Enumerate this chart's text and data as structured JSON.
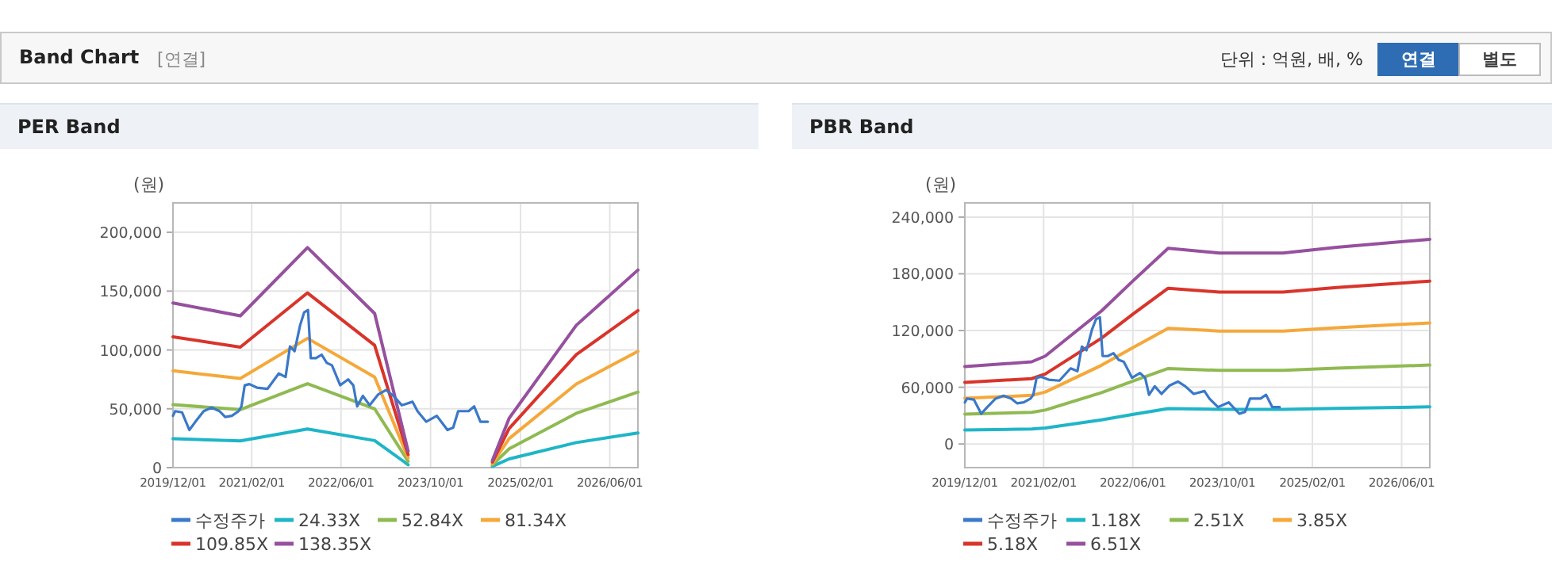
{
  "chart_data": [
    {
      "type": "other",
      "title": "Band Chart",
      "annotations": [
        "[연결]",
        "단위 : 억원, 배, %",
        "연결",
        "별도"
      ]
    },
    {
      "type": "line",
      "title": "PER Band",
      "ylabel": "(원)",
      "xlim": [
        "2019-12-01",
        "2026-11-01"
      ],
      "ylim": [
        0,
        225000
      ],
      "xticks": [
        {
          "value": "2019-12-01",
          "label": "2019/12/01"
        },
        {
          "value": "2021-02-01",
          "label": "2021/02/01"
        },
        {
          "value": "2022-06-01",
          "label": "2022/06/01"
        },
        {
          "value": "2023-10-01",
          "label": "2023/10/01"
        },
        {
          "value": "2025-02-01",
          "label": "2025/02/01"
        },
        {
          "value": "2026-06-01",
          "label": "2026/06/01"
        }
      ],
      "yticks": [
        {
          "value": 0,
          "label": "0"
        },
        {
          "value": 50000,
          "label": "50,000"
        },
        {
          "value": 100000,
          "label": "100,000"
        },
        {
          "value": 150000,
          "label": "150,000"
        },
        {
          "value": 200000,
          "label": "200,000"
        }
      ],
      "grid": true,
      "legend": "bottom",
      "series": [
        {
          "name": "수정주가",
          "color": "#3a78c9",
          "x": [
            "2019-12-01",
            "2019-12-13",
            "2020-01-19",
            "2020-02-28",
            "2020-04-01",
            "2020-05-16",
            "2020-06-28",
            "2020-08-10",
            "2020-09-10",
            "2020-10-16",
            "2020-11-22",
            "2020-12-07",
            "2020-12-25",
            "2021-01-19",
            "2021-03-01",
            "2021-04-28",
            "2021-06-28",
            "2021-08-04",
            "2021-08-28",
            "2021-09-22",
            "2021-10-22",
            "2021-11-13",
            "2021-12-04",
            "2021-12-19",
            "2022-01-16",
            "2022-02-16",
            "2022-03-16",
            "2022-04-13",
            "2022-05-28",
            "2022-07-10",
            "2022-08-07",
            "2022-08-28",
            "2022-09-28",
            "2022-11-04",
            "2022-12-19",
            "2023-02-01",
            "2023-03-13",
            "2023-04-28",
            "2023-06-25",
            "2023-07-22",
            "2023-09-07",
            "2023-11-04",
            "2024-01-01",
            "2024-02-01",
            "2024-02-28",
            "2024-04-25",
            "2024-05-25",
            "2024-06-28",
            "2024-08-07"
          ],
          "values": [
            44000,
            48000,
            47000,
            32000,
            39000,
            48000,
            51000,
            48000,
            43000,
            44000,
            48000,
            52000,
            70000,
            71000,
            68000,
            67000,
            80000,
            77000,
            103000,
            99000,
            121000,
            132000,
            134000,
            93000,
            93000,
            96000,
            89000,
            87000,
            70000,
            75000,
            70000,
            52000,
            61000,
            53000,
            62000,
            66000,
            61000,
            53000,
            56000,
            48000,
            39000,
            44000,
            32000,
            34000,
            48000,
            48000,
            52000,
            39000,
            39000
          ]
        },
        {
          "name": "24.33X",
          "color": "#1fb5c7",
          "x": [
            "2019-12-01",
            "2020-12-01",
            "2021-12-01",
            "2022-12-01",
            "2023-06-01",
            "2024-03-01",
            "2024-09-01",
            "2024-12-01",
            "2025-12-01",
            "2026-11-01"
          ],
          "values": [
            24600,
            22700,
            32900,
            23000,
            2500,
            null,
            1100,
            7400,
            21300,
            29500
          ]
        },
        {
          "name": "52.84X",
          "color": "#8fba52",
          "x": [
            "2019-12-01",
            "2020-12-01",
            "2021-12-01",
            "2022-12-01",
            "2023-06-01",
            "2024-03-01",
            "2024-09-01",
            "2024-12-01",
            "2025-12-01",
            "2026-11-01"
          ],
          "values": [
            53500,
            49300,
            71400,
            50000,
            5300,
            null,
            2300,
            16000,
            46200,
            64200
          ]
        },
        {
          "name": "81.34X",
          "color": "#f5a83a",
          "x": [
            "2019-12-01",
            "2020-12-01",
            "2021-12-01",
            "2022-12-01",
            "2023-06-01",
            "2024-03-01",
            "2024-09-01",
            "2024-12-01",
            "2025-12-01",
            "2026-11-01"
          ],
          "values": [
            82300,
            75800,
            109900,
            77000,
            8200,
            null,
            3500,
            24700,
            71100,
            98800
          ]
        },
        {
          "name": "109.85X",
          "color": "#d9342b",
          "x": [
            "2019-12-01",
            "2020-12-01",
            "2021-12-01",
            "2022-12-01",
            "2023-06-01",
            "2024-03-01",
            "2024-09-01",
            "2024-12-01",
            "2025-12-01",
            "2026-11-01"
          ],
          "values": [
            111200,
            102400,
            148500,
            104000,
            11100,
            null,
            4800,
            33300,
            96100,
            133400
          ]
        },
        {
          "name": "138.35X",
          "color": "#96509e",
          "x": [
            "2019-12-01",
            "2020-12-01",
            "2021-12-01",
            "2022-12-01",
            "2023-06-01",
            "2024-03-01",
            "2024-09-01",
            "2024-12-01",
            "2025-12-01",
            "2026-11-01"
          ],
          "values": [
            140000,
            129000,
            187000,
            131000,
            14000,
            null,
            6000,
            42000,
            121000,
            168000
          ]
        }
      ]
    },
    {
      "type": "line",
      "title": "PBR Band",
      "ylabel": "(원)",
      "xlim": [
        "2019-12-01",
        "2026-11-01"
      ],
      "ylim": [
        -25000,
        255000
      ],
      "xticks": [
        {
          "value": "2019-12-01",
          "label": "2019/12/01"
        },
        {
          "value": "2021-02-01",
          "label": "2021/02/01"
        },
        {
          "value": "2022-06-01",
          "label": "2022/06/01"
        },
        {
          "value": "2023-10-01",
          "label": "2023/10/01"
        },
        {
          "value": "2025-02-01",
          "label": "2025/02/01"
        },
        {
          "value": "2026-06-01",
          "label": "2026/06/01"
        }
      ],
      "yticks": [
        {
          "value": 0,
          "label": "0"
        },
        {
          "value": 60000,
          "label": "60,000"
        },
        {
          "value": 120000,
          "label": "120,000"
        },
        {
          "value": 180000,
          "label": "180,000"
        },
        {
          "value": 240000,
          "label": "240,000"
        }
      ],
      "grid": true,
      "legend": "bottom",
      "series": [
        {
          "name": "수정주가",
          "color": "#3a78c9",
          "x": [
            "2019-12-01",
            "2019-12-13",
            "2020-01-19",
            "2020-02-28",
            "2020-04-01",
            "2020-05-16",
            "2020-06-28",
            "2020-08-10",
            "2020-09-10",
            "2020-10-16",
            "2020-11-22",
            "2020-12-07",
            "2020-12-25",
            "2021-01-19",
            "2021-03-01",
            "2021-04-28",
            "2021-06-28",
            "2021-08-04",
            "2021-08-28",
            "2021-09-22",
            "2021-10-22",
            "2021-11-13",
            "2021-12-04",
            "2021-12-19",
            "2022-01-16",
            "2022-02-16",
            "2022-03-16",
            "2022-04-13",
            "2022-05-28",
            "2022-07-10",
            "2022-08-07",
            "2022-08-28",
            "2022-09-28",
            "2022-11-04",
            "2022-12-19",
            "2023-02-01",
            "2023-03-13",
            "2023-04-28",
            "2023-06-25",
            "2023-07-22",
            "2023-09-07",
            "2023-11-04",
            "2024-01-01",
            "2024-02-01",
            "2024-02-28",
            "2024-04-25",
            "2024-05-25",
            "2024-06-28",
            "2024-08-07"
          ],
          "values": [
            44000,
            48000,
            47000,
            32000,
            39000,
            48000,
            51000,
            48000,
            43000,
            44000,
            48000,
            52000,
            70000,
            71000,
            68000,
            67000,
            80000,
            77000,
            103000,
            99000,
            121000,
            132000,
            134000,
            93000,
            93000,
            96000,
            89000,
            87000,
            70000,
            75000,
            70000,
            52000,
            61000,
            53000,
            62000,
            66000,
            61000,
            53000,
            56000,
            48000,
            39000,
            44000,
            32000,
            34000,
            48000,
            48000,
            52000,
            39000,
            39000
          ]
        },
        {
          "name": "1.18X",
          "color": "#1fb5c7",
          "x": [
            "2019-12-01",
            "2020-11-28",
            "2021-02-10",
            "2021-12-13",
            "2022-06-04",
            "2022-12-10",
            "2023-09-13",
            "2024-08-25",
            "2025-06-13",
            "2026-11-01"
          ],
          "values": [
            14800,
            15800,
            16900,
            25500,
            31400,
            37500,
            36600,
            36600,
            37700,
            39300
          ]
        },
        {
          "name": "2.51X",
          "color": "#8fba52",
          "x": [
            "2019-12-01",
            "2020-11-28",
            "2021-02-10",
            "2021-12-13",
            "2022-06-04",
            "2022-12-10",
            "2023-09-13",
            "2024-08-25",
            "2025-06-13",
            "2026-11-01"
          ],
          "values": [
            31600,
            33500,
            35900,
            54300,
            66700,
            79800,
            77900,
            77900,
            80200,
            83500
          ]
        },
        {
          "name": "3.85X",
          "color": "#f5a83a",
          "x": [
            "2019-12-01",
            "2020-11-28",
            "2021-02-10",
            "2021-12-13",
            "2022-06-04",
            "2022-12-10",
            "2023-09-13",
            "2024-08-25",
            "2025-06-13",
            "2026-11-01"
          ],
          "values": [
            48400,
            51400,
            55000,
            83300,
            102300,
            122400,
            119500,
            119500,
            123000,
            128000
          ]
        },
        {
          "name": "5.18X",
          "color": "#d9342b",
          "x": [
            "2019-12-01",
            "2020-11-28",
            "2021-02-10",
            "2021-12-13",
            "2022-06-04",
            "2022-12-10",
            "2023-09-13",
            "2024-08-25",
            "2025-06-13",
            "2026-11-01"
          ],
          "values": [
            65200,
            69100,
            74000,
            112000,
            137700,
            164700,
            160700,
            160700,
            165500,
            172300
          ]
        },
        {
          "name": "6.51X",
          "color": "#96509e",
          "x": [
            "2019-12-01",
            "2020-11-28",
            "2021-02-10",
            "2021-12-13",
            "2022-06-04",
            "2022-12-10",
            "2023-09-13",
            "2024-08-25",
            "2025-06-13",
            "2026-11-01"
          ],
          "values": [
            81900,
            86900,
            93000,
            140800,
            173000,
            207000,
            202000,
            202000,
            208000,
            216500
          ]
        }
      ]
    }
  ]
}
